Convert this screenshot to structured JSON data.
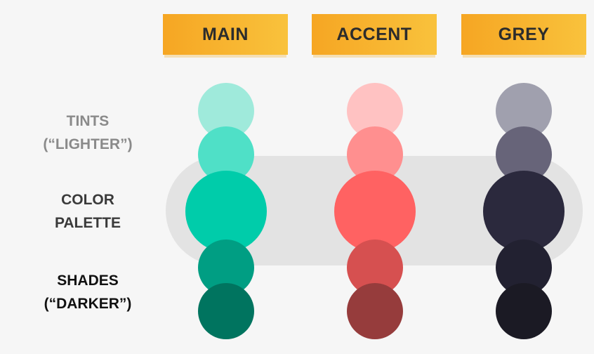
{
  "columns": [
    {
      "label": "MAIN"
    },
    {
      "label": "ACCENT"
    },
    {
      "label": "GREY"
    }
  ],
  "rows": {
    "tints": {
      "line1": "TINTS",
      "line2": "(“LIGHTER”)",
      "color": "#8a8a8a"
    },
    "palette": {
      "line1": "COLOR",
      "line2": "PALETTE",
      "color": "#3a3a3a"
    },
    "shades": {
      "line1": "SHADES",
      "line2": "(“DARKER”)",
      "color": "#111111"
    }
  },
  "swatches": {
    "main": [
      "#9feadb",
      "#4fe0c7",
      "#00ccaa",
      "#009e83",
      "#00745f"
    ],
    "accent": [
      "#ffc2c2",
      "#ff8f8f",
      "#ff6262",
      "#d65050",
      "#963c3c"
    ],
    "grey": [
      "#a0a0ae",
      "#676479",
      "#2b293d",
      "#222131",
      "#1b1a24"
    ]
  }
}
